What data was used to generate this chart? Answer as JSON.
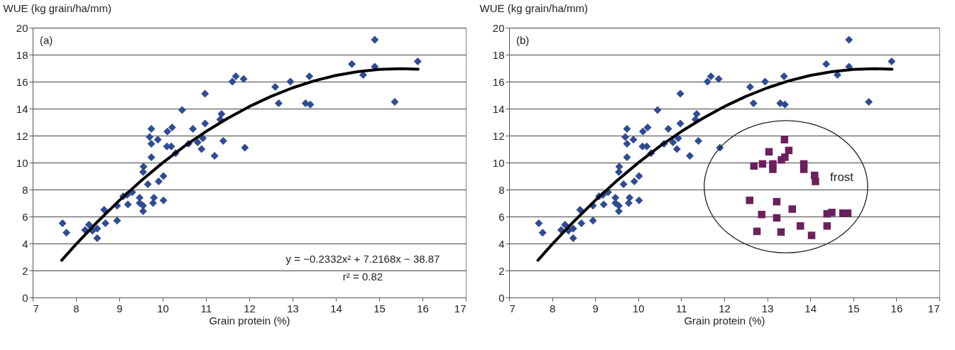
{
  "chart_data": [
    {
      "type": "scatter",
      "xlabel": "Grain protein (%)",
      "ylabel": "WUE (kg grain/ha/mm)",
      "xlim": [
        7,
        17
      ],
      "xticks": [
        7,
        8,
        9,
        10,
        11,
        12,
        13,
        14,
        15,
        16,
        17
      ],
      "ylim": [
        0,
        20
      ],
      "yticks": [
        0,
        2,
        4,
        6,
        8,
        10,
        12,
        14,
        16,
        18,
        20
      ],
      "grid": "y",
      "annotations": [
        "(a)",
        "y = −0.2332x² + 7.2168x − 38.87",
        "r² = 0.82"
      ],
      "series": [
        {
          "type": "scatter",
          "marker": "diamond",
          "color": "#2f4b93",
          "x": [
            7.69,
            7.78,
            8.21,
            8.3,
            8.38,
            8.49,
            8.49,
            8.68,
            8.65,
            8.95,
            8.95,
            9.09,
            9.18,
            9.2,
            9.3,
            9.47,
            9.47,
            9.55,
            9.55,
            9.66,
            9.78,
            9.8,
            10.02,
            9.91,
            10.02,
            9.56,
            9.55,
            9.74,
            9.74,
            9.7,
            9.89,
            10.1,
            10.2,
            10.3,
            9.74,
            10.11,
            10.22,
            10.7,
            10.6,
            10.81,
            10.93,
            10.9,
            11.2,
            11.4,
            11.9,
            10.45,
            10.98,
            10.98,
            11.33,
            11.36,
            11.61,
            11.69,
            11.87,
            12.6,
            12.95,
            12.68,
            13.39,
            13.3,
            13.41,
            14.37,
            14.63,
            14.9,
            14.9,
            15.89,
            15.36
          ],
          "values": [
            5.5,
            4.8,
            5.0,
            5.4,
            4.95,
            5.1,
            4.4,
            5.5,
            6.5,
            5.7,
            6.8,
            7.5,
            7.6,
            6.9,
            7.8,
            7.4,
            7.0,
            6.8,
            6.4,
            8.4,
            7.0,
            7.4,
            7.2,
            8.6,
            9.0,
            9.7,
            9.3,
            10.4,
            11.4,
            11.9,
            11.7,
            11.2,
            11.2,
            10.7,
            12.5,
            12.3,
            12.6,
            12.5,
            11.4,
            11.5,
            11.8,
            11.0,
            10.5,
            11.6,
            11.1,
            13.9,
            15.1,
            12.9,
            13.2,
            13.6,
            16.0,
            16.4,
            16.2,
            15.6,
            16.0,
            14.4,
            16.4,
            14.4,
            14.3,
            17.3,
            16.5,
            17.1,
            19.1,
            17.5,
            14.5
          ]
        },
        {
          "type": "line",
          "marker": "none",
          "color": "#000000",
          "x": [
            7.67,
            8,
            8.5,
            9,
            9.5,
            10,
            10.5,
            11,
            11.5,
            12,
            12.5,
            13,
            13.5,
            14,
            14.5,
            15,
            15.5,
            15.9
          ],
          "values": [
            2.76,
            3.94,
            5.62,
            7.19,
            8.64,
            9.98,
            11.2,
            12.3,
            13.28,
            14.15,
            14.9,
            15.54,
            16.06,
            16.46,
            16.74,
            16.91,
            16.96,
            16.92
          ]
        }
      ]
    },
    {
      "type": "scatter",
      "xlabel": "Grain protein (%)",
      "ylabel": "WUE (kg grain/ha/mm)",
      "xlim": [
        7,
        17
      ],
      "xticks": [
        7,
        8,
        9,
        10,
        11,
        12,
        13,
        14,
        15,
        16,
        17
      ],
      "ylim": [
        0,
        20
      ],
      "yticks": [
        0,
        2,
        4,
        6,
        8,
        10,
        12,
        14,
        16,
        18,
        20
      ],
      "grid": "y",
      "annotations": [
        "(b)",
        "frost"
      ],
      "series": [
        {
          "type": "scatter",
          "marker": "diamond",
          "color": "#2f4b93",
          "x": [
            7.69,
            7.78,
            8.21,
            8.3,
            8.38,
            8.49,
            8.49,
            8.68,
            8.65,
            8.95,
            8.95,
            9.09,
            9.18,
            9.2,
            9.3,
            9.47,
            9.47,
            9.55,
            9.55,
            9.66,
            9.78,
            9.8,
            10.02,
            9.91,
            10.02,
            9.56,
            9.55,
            9.74,
            9.74,
            9.7,
            9.89,
            10.1,
            10.2,
            10.3,
            9.74,
            10.11,
            10.22,
            10.7,
            10.6,
            10.81,
            10.93,
            10.9,
            11.2,
            11.4,
            11.9,
            10.45,
            10.98,
            10.98,
            11.33,
            11.36,
            11.61,
            11.69,
            11.87,
            12.6,
            12.95,
            12.68,
            13.39,
            13.3,
            13.41,
            14.37,
            14.63,
            14.9,
            14.9,
            15.89,
            15.36
          ],
          "values": [
            5.5,
            4.8,
            5.0,
            5.4,
            4.95,
            5.1,
            4.4,
            5.5,
            6.5,
            5.7,
            6.8,
            7.5,
            7.6,
            6.9,
            7.8,
            7.4,
            7.0,
            6.8,
            6.4,
            8.4,
            7.0,
            7.4,
            7.2,
            8.6,
            9.0,
            9.7,
            9.3,
            10.4,
            11.4,
            11.9,
            11.7,
            11.2,
            11.2,
            10.7,
            12.5,
            12.3,
            12.6,
            12.5,
            11.4,
            11.5,
            11.8,
            11.0,
            10.5,
            11.6,
            11.1,
            13.9,
            15.1,
            12.9,
            13.2,
            13.6,
            16.0,
            16.4,
            16.2,
            15.6,
            16.0,
            14.4,
            16.4,
            14.4,
            14.3,
            17.3,
            16.5,
            17.1,
            19.1,
            17.5,
            14.5
          ]
        },
        {
          "type": "line",
          "marker": "none",
          "color": "#000000",
          "x": [
            7.67,
            8,
            8.5,
            9,
            9.5,
            10,
            10.5,
            11,
            11.5,
            12,
            12.5,
            13,
            13.5,
            14,
            14.5,
            15,
            15.5,
            15.9
          ],
          "values": [
            2.76,
            3.94,
            5.62,
            7.19,
            8.64,
            9.98,
            11.2,
            12.3,
            13.28,
            14.15,
            14.9,
            15.54,
            16.06,
            16.46,
            16.74,
            16.91,
            16.96,
            16.92
          ]
        },
        {
          "type": "scatter",
          "marker": "square",
          "color": "#6b1f5e",
          "x": [
            13.4,
            13.04,
            13.5,
            12.69,
            12.89,
            13.13,
            13.13,
            13.33,
            13.41,
            13.85,
            13.85,
            14.1,
            14.12,
            12.59,
            13.22,
            13.58,
            12.87,
            13.22,
            12.76,
            13.32,
            13.77,
            14.03,
            14.39,
            14.39,
            14.5,
            14.76,
            14.87
          ],
          "values": [
            11.7,
            10.8,
            10.9,
            9.75,
            9.9,
            9.9,
            9.5,
            10.2,
            10.4,
            9.9,
            9.5,
            9.05,
            8.6,
            7.2,
            7.1,
            6.55,
            6.15,
            5.9,
            4.9,
            4.85,
            5.3,
            4.6,
            5.3,
            6.2,
            6.3,
            6.25,
            6.25
          ]
        }
      ]
    }
  ]
}
